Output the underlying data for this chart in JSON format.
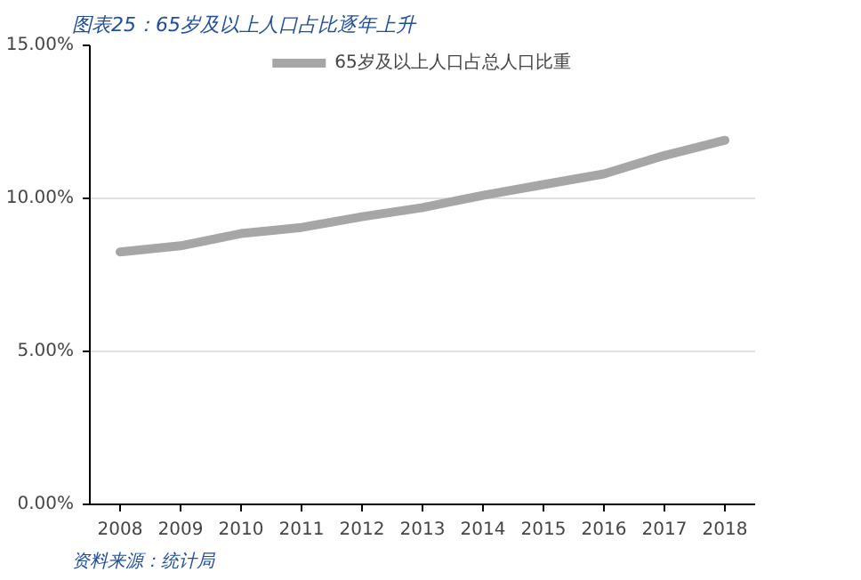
{
  "chart_data": {
    "type": "line",
    "title": "图表25：65岁及以上人口占比逐年上升",
    "categories": [
      "2008",
      "2009",
      "2010",
      "2011",
      "2012",
      "2013",
      "2014",
      "2015",
      "2016",
      "2017",
      "2018"
    ],
    "series": [
      {
        "name": "65岁及以上人口占总人口比重",
        "color": "#a6a6a6",
        "values": [
          8.25,
          8.45,
          8.85,
          9.05,
          9.4,
          9.7,
          10.1,
          10.45,
          10.8,
          11.4,
          11.9
        ]
      }
    ],
    "ylim": [
      0,
      15
    ],
    "yticks": [
      {
        "value": 0,
        "label": "0.00%"
      },
      {
        "value": 5,
        "label": "5.00%"
      },
      {
        "value": 10,
        "label": "10.00%"
      },
      {
        "value": 15,
        "label": "15.00%"
      }
    ],
    "grid": "y",
    "legend": "top",
    "marker": "none",
    "line_style": "solid",
    "annotations": [
      "资料来源：统计局"
    ]
  }
}
